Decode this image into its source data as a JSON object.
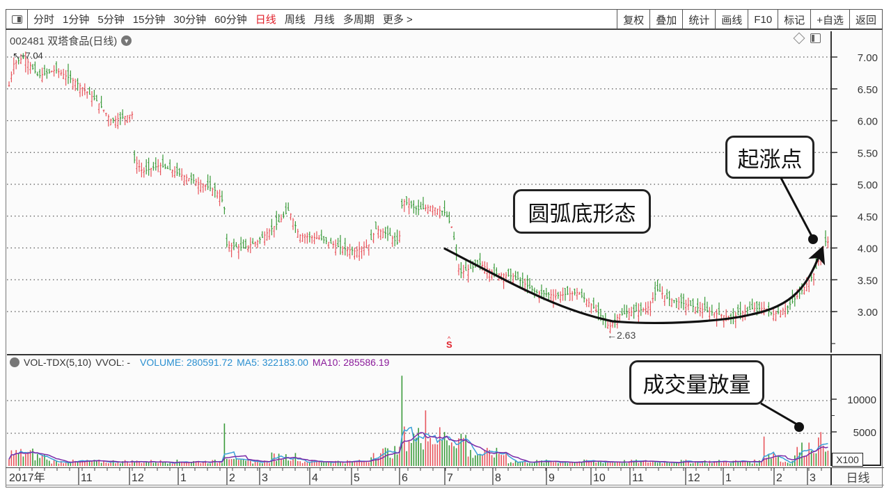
{
  "toolbar": {
    "periods": [
      "分时",
      "1分钟",
      "5分钟",
      "15分钟",
      "30分钟",
      "60分钟",
      "日线",
      "周线",
      "月线",
      "多周期",
      "更多 >"
    ],
    "active_period": "日线",
    "buttons": [
      "复权",
      "叠加",
      "统计",
      "画线",
      "F10",
      "标记",
      "+自选",
      "返回"
    ]
  },
  "header": {
    "title": "002481 双塔食品(日线)",
    "high_marker": "7.04",
    "low_marker": "2.63"
  },
  "volume_legend": {
    "name": "VOL-TDX(5,10)",
    "vvol": "VVOL: -",
    "volume": "VOLUME: 280591.72",
    "ma5": "MA5: 322183.00",
    "ma10": "MA10: 285586.19"
  },
  "price_axis": [
    "7.00",
    "6.50",
    "6.00",
    "5.50",
    "5.00",
    "4.50",
    "4.00",
    "3.50",
    "3.00"
  ],
  "volume_axis": [
    "10000",
    "5000"
  ],
  "volume_unit": "X100",
  "date_axis": {
    "labels": [
      "2017年",
      "11",
      "12",
      "1",
      "2",
      "3",
      "4",
      "5",
      "6",
      "7",
      "8",
      "9",
      "10",
      "11",
      "12",
      "1",
      "2",
      "3"
    ],
    "period_label": "日线"
  },
  "annotations": {
    "rounding_bottom": "圆弧底形态",
    "start_point": "起涨点",
    "volume_surge": "成交量放量",
    "s_marker": "S"
  },
  "colors": {
    "up": "#e8555c",
    "down": "#3a9a3a",
    "active_period": "#e0202a",
    "volume_blue": "#2a8fd0",
    "ma10_purple": "#8a1a9a",
    "ma5_line": "#3aa0d8",
    "ma10_line": "#7a2aa8"
  },
  "chart_data": [
    {
      "type": "candlestick",
      "title": "002481 双塔食品(日线)",
      "ylim": [
        2.5,
        7.2
      ],
      "yticks": [
        3.0,
        3.5,
        4.0,
        4.5,
        5.0,
        5.5,
        6.0,
        6.5,
        7.0
      ],
      "xlabels": [
        "2017年",
        "11",
        "12",
        "1",
        "2",
        "3",
        "4",
        "5",
        "6",
        "7",
        "8",
        "9",
        "10",
        "11",
        "12",
        "1",
        "2",
        "3"
      ],
      "approx_close_by_month": {
        "2017-10": 6.8,
        "2017-11": 6.2,
        "2017-12": 5.3,
        "2018-01": 5.1,
        "2018-02": 4.1,
        "2018-03": 4.4,
        "2018-04": 4.1,
        "2018-05": 4.2,
        "2018-06": 4.6,
        "2018-07": 3.6,
        "2018-08": 3.5,
        "2018-09": 3.2,
        "2018-10": 2.9,
        "2018-11": 3.1,
        "2018-12": 3.1,
        "2019-01": 2.9,
        "2019-02": 3.0,
        "2019-03": 4.1
      },
      "high": 7.04,
      "low": 2.63,
      "annotations": [
        "圆弧底形态",
        "起涨点"
      ]
    },
    {
      "type": "bar",
      "title": "VOL-TDX(5,10)",
      "ylim": [
        0,
        14000
      ],
      "yticks": [
        5000,
        10000
      ],
      "unit": "X100",
      "series": [
        {
          "name": "VOLUME",
          "last": 280591.72
        },
        {
          "name": "MA5",
          "last": 322183.0
        },
        {
          "name": "MA10",
          "last": 285586.19
        }
      ],
      "peak_volume_approx": 14000,
      "annotations": [
        "成交量放量"
      ]
    }
  ]
}
